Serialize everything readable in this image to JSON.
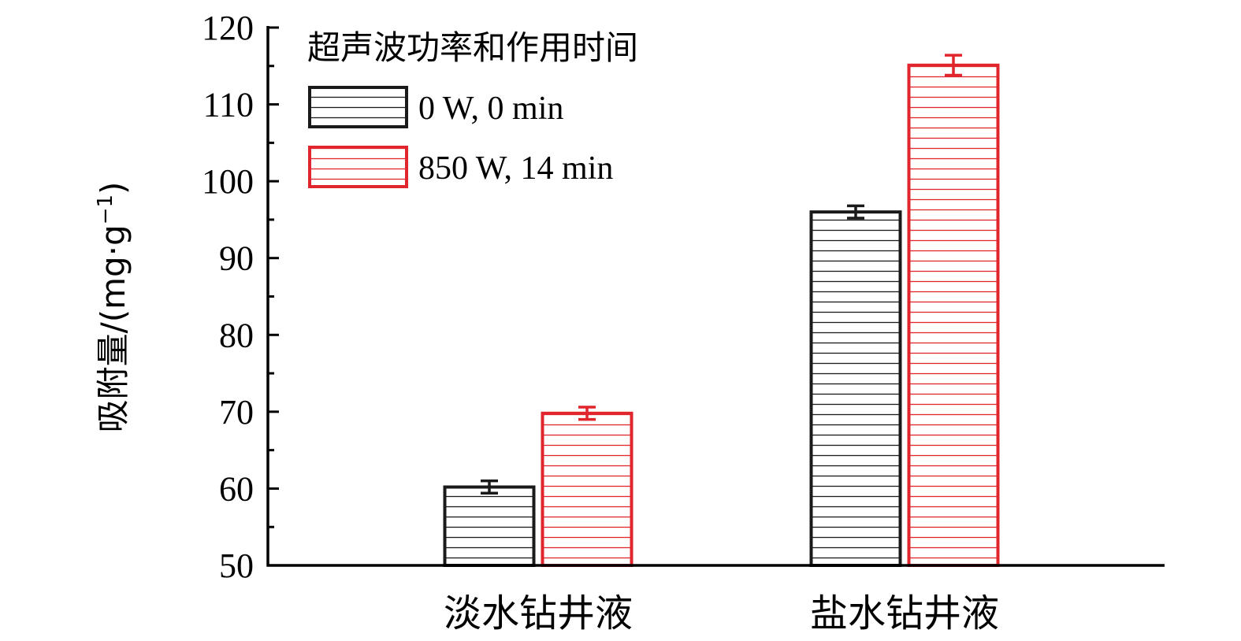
{
  "chart_data": {
    "type": "bar",
    "categories": [
      "淡水钻井液",
      "盐水钻井液"
    ],
    "series": [
      {
        "name": "0 W, 0 min",
        "values": [
          60.2,
          96.0
        ],
        "errors": [
          0.8,
          0.8
        ],
        "color": "#1a1a1a"
      },
      {
        "name": "850 W, 14 min",
        "values": [
          69.8,
          115.1
        ],
        "errors": [
          0.8,
          1.3
        ],
        "color": "#e0262c"
      }
    ],
    "title": "",
    "xlabel": "",
    "ylabel": "吸附量/(mg·g",
    "ylabel_sup": "−1",
    "ylabel_close": ")",
    "ylim": [
      50,
      120
    ],
    "yticks": [
      "50",
      "60",
      "70",
      "80",
      "90",
      "100",
      "110",
      "120"
    ],
    "ytick_values": [
      50,
      60,
      70,
      80,
      90,
      100,
      110,
      120
    ],
    "legend": {
      "title": "超声波功率和作用时间",
      "placement": "top-left"
    },
    "fill_pattern": "horizontal-hatch",
    "grid": false
  }
}
